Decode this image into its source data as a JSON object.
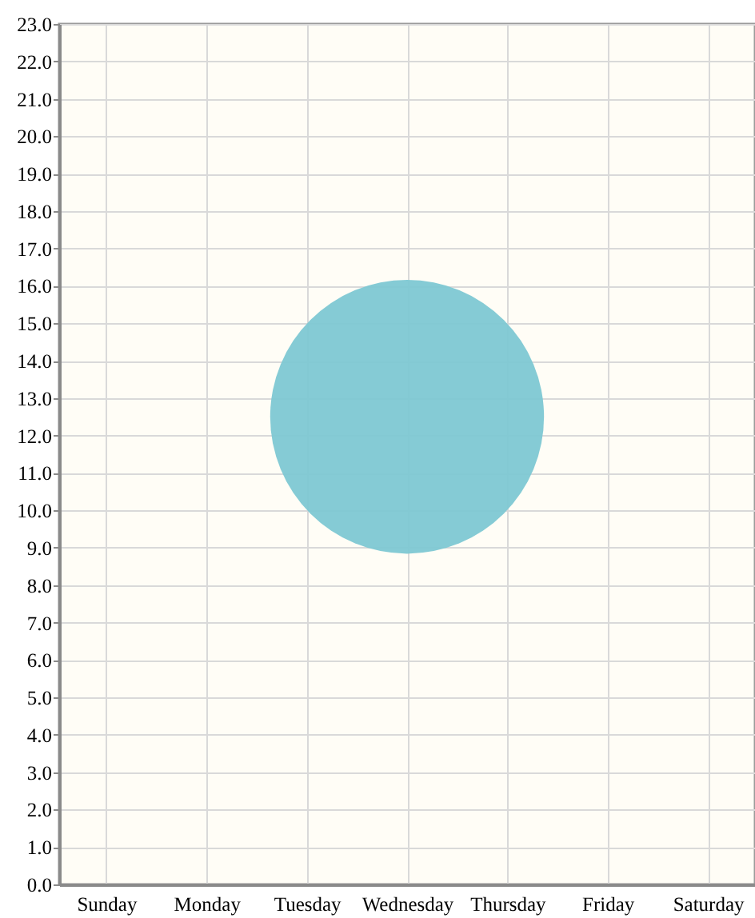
{
  "chart_data": {
    "type": "bubble",
    "categories": [
      "Sunday",
      "Monday",
      "Tuesday",
      "Wednesday",
      "Thursday",
      "Friday",
      "Saturday"
    ],
    "values": [
      null,
      null,
      null,
      12.5,
      null,
      null,
      null
    ],
    "sizes": [
      null,
      null,
      null,
      1,
      null,
      null,
      null
    ],
    "color": "#7ec8d3",
    "ylim": [
      0,
      23
    ],
    "yticks": [
      {
        "value": 0,
        "label": "0.0"
      },
      {
        "value": 1,
        "label": "1.0"
      },
      {
        "value": 2,
        "label": "2.0"
      },
      {
        "value": 3,
        "label": "3.0"
      },
      {
        "value": 4,
        "label": "4.0"
      },
      {
        "value": 5,
        "label": "5.0"
      },
      {
        "value": 6,
        "label": "6.0"
      },
      {
        "value": 7,
        "label": "7.0"
      },
      {
        "value": 8,
        "label": "8.0"
      },
      {
        "value": 9,
        "label": "9.0"
      },
      {
        "value": 10,
        "label": "10.0"
      },
      {
        "value": 11,
        "label": "11.0"
      },
      {
        "value": 12,
        "label": "12.0"
      },
      {
        "value": 13,
        "label": "13.0"
      },
      {
        "value": 14,
        "label": "14.0"
      },
      {
        "value": 15,
        "label": "15.0"
      },
      {
        "value": 16,
        "label": "16.0"
      },
      {
        "value": 17,
        "label": "17.0"
      },
      {
        "value": 18,
        "label": "18.0"
      },
      {
        "value": 19,
        "label": "19.0"
      },
      {
        "value": 20,
        "label": "20.0"
      },
      {
        "value": 21,
        "label": "21.0"
      },
      {
        "value": 22,
        "label": "22.0"
      },
      {
        "value": 23,
        "label": "23.0"
      }
    ],
    "grid": true
  }
}
